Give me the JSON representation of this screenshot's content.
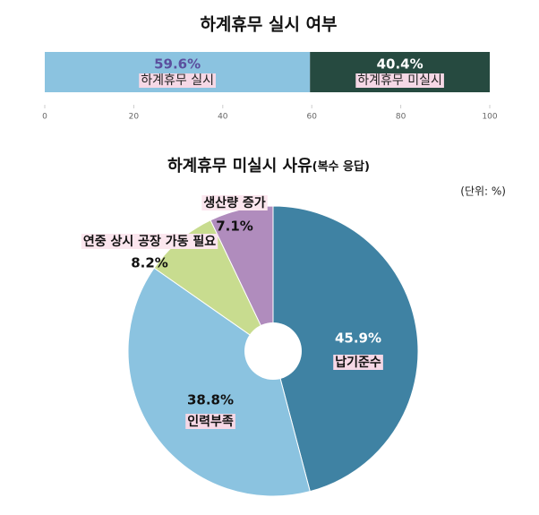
{
  "chart_data": [
    {
      "type": "bar",
      "orientation": "horizontal",
      "stacked": true,
      "title": "하계휴무 실시 여부",
      "series": [
        {
          "name": "하계휴무 실시",
          "color": "#8bc3e0",
          "values": [
            59.6
          ],
          "value_labels": [
            "59.6%"
          ]
        },
        {
          "name": "하계휴무 미실시",
          "color": "#264a40",
          "values": [
            40.4
          ],
          "value_labels": [
            "40.4%"
          ]
        }
      ],
      "xlim": [
        0,
        100
      ],
      "xticks": [
        0,
        20,
        40,
        60,
        80,
        100
      ],
      "grid": false
    },
    {
      "type": "pie",
      "title": "하계휴무 미실시 사유",
      "subtitle": "(복수 응답)",
      "annotation": "(단위: %)",
      "categories": [
        "납기준수",
        "인력부족",
        "연중 상시 공장 가동 필요",
        "생산량 증가"
      ],
      "values": [
        45.9,
        38.8,
        8.2,
        7.1
      ],
      "value_labels": [
        "45.9%",
        "38.8%",
        "8.2%",
        "7.1%"
      ],
      "colors": [
        "#3f82a3",
        "#8bc3e0",
        "#c8dc8f",
        "#b08cbd"
      ]
    }
  ]
}
